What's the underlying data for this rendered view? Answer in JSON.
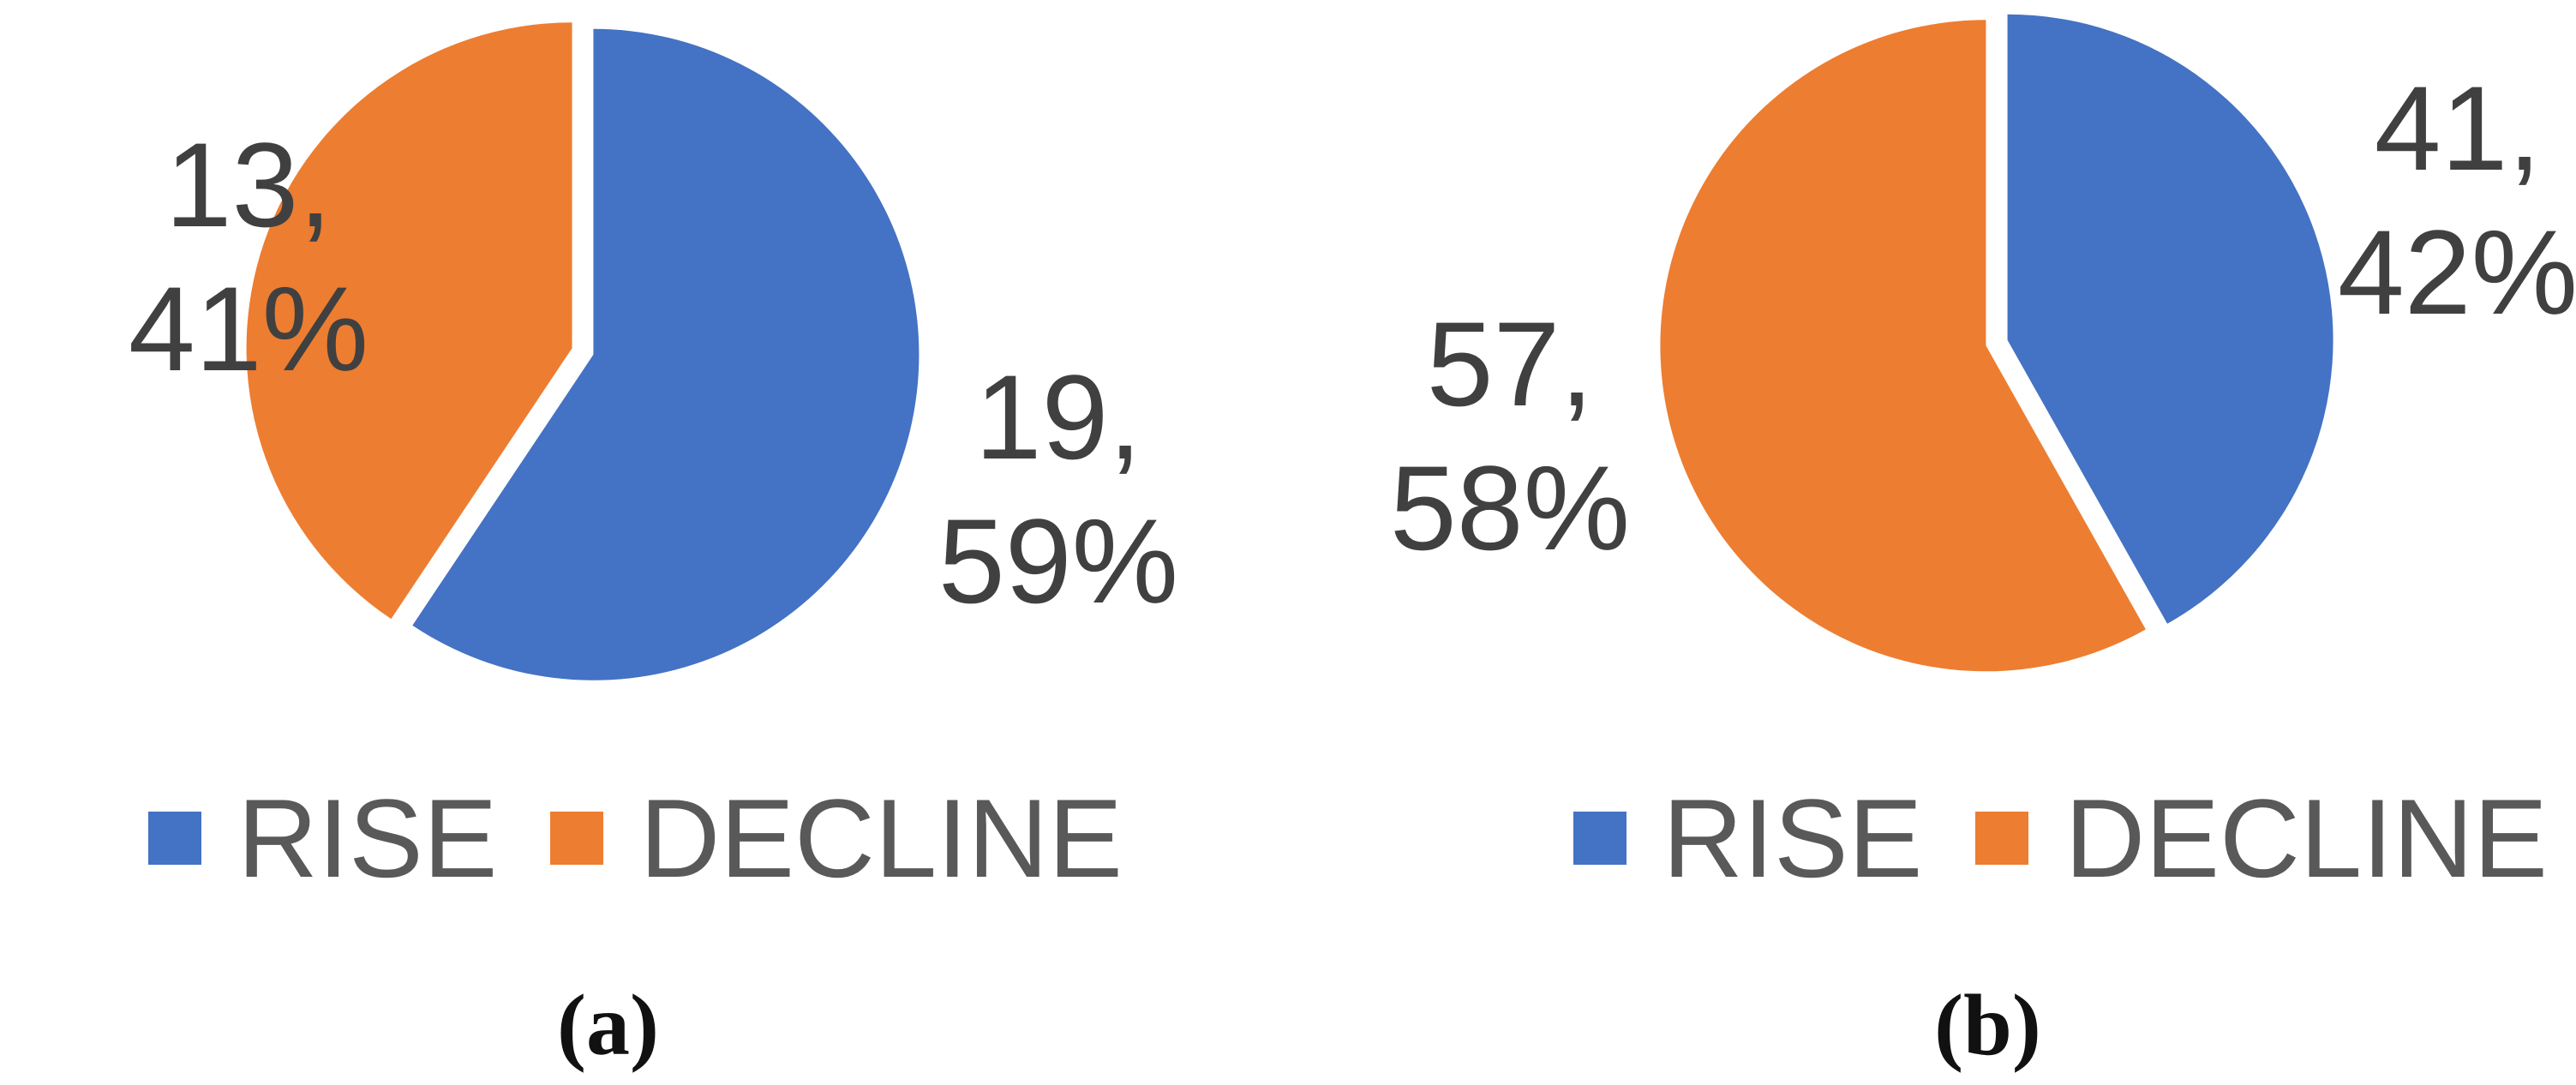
{
  "colors": {
    "rise": "#4472C4",
    "decline": "#ED7D31",
    "label_text": "#404040",
    "legend_text": "#595959",
    "caption_text": "#111111",
    "background": "#FFFFFF"
  },
  "chart_data": [
    {
      "type": "pie",
      "caption": "(a)",
      "title": "",
      "start_angle_deg": 0,
      "legend_position": "bottom",
      "slices": [
        {
          "name": "RISE",
          "value": 19,
          "pct": 59,
          "color": "#4472C4",
          "label_lines": [
            "19,",
            "59%"
          ],
          "label_position": "right"
        },
        {
          "name": "DECLINE",
          "value": 13,
          "pct": 41,
          "color": "#ED7D31",
          "label_lines": [
            "13,",
            "41%"
          ],
          "label_position": "left"
        }
      ],
      "legend": [
        {
          "label": "RISE",
          "color": "#4472C4"
        },
        {
          "label": "DECLINE",
          "color": "#ED7D31"
        }
      ]
    },
    {
      "type": "pie",
      "caption": "(b)",
      "title": "",
      "start_angle_deg": 0,
      "legend_position": "bottom",
      "slices": [
        {
          "name": "RISE",
          "value": 41,
          "pct": 42,
          "color": "#4472C4",
          "label_lines": [
            "41,",
            "42%"
          ],
          "label_position": "right"
        },
        {
          "name": "DECLINE",
          "value": 57,
          "pct": 58,
          "color": "#ED7D31",
          "label_lines": [
            "57,",
            "58%"
          ],
          "label_position": "left"
        }
      ],
      "legend": [
        {
          "label": "RISE",
          "color": "#4472C4"
        },
        {
          "label": "DECLINE",
          "color": "#ED7D31"
        }
      ]
    }
  ]
}
